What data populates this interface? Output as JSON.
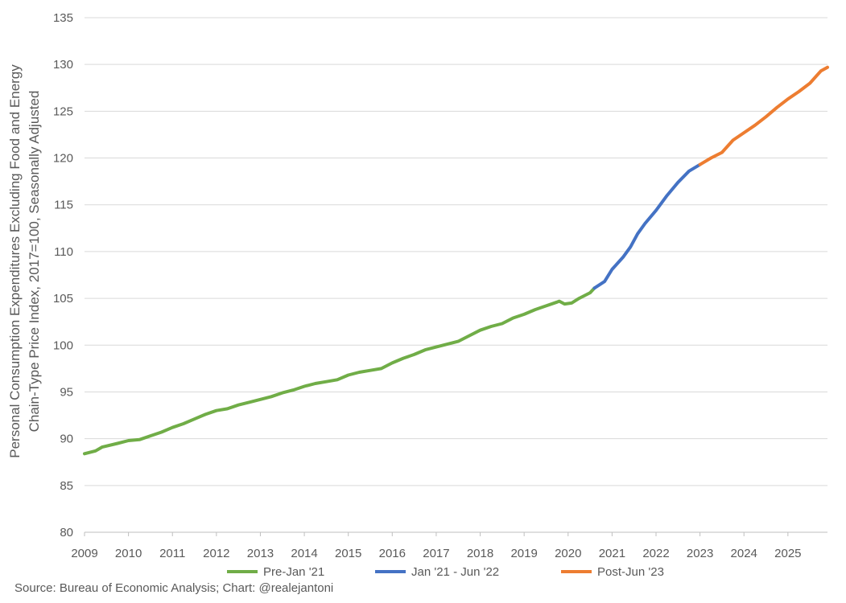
{
  "source_note": "Source: Bureau of Economic Analysis; Chart: @realejantoni",
  "chart_data": {
    "type": "line",
    "title": "",
    "xlabel": "",
    "ylabel_line1": "Personal Consumption Expenditures Excluding Food and Energy",
    "ylabel_line2": "Chain-Type Price Index, 2017=100, Seasonally Adjusted",
    "xlim": [
      2009.0,
      2025.9
    ],
    "ylim": [
      80,
      135
    ],
    "y_ticks": [
      80,
      85,
      90,
      95,
      100,
      105,
      110,
      115,
      120,
      125,
      130,
      135
    ],
    "x_ticks": [
      "2009",
      "2010",
      "2011",
      "2012",
      "2013",
      "2014",
      "2015",
      "2016",
      "2017",
      "2018",
      "2019",
      "2020",
      "2021",
      "2022",
      "2023",
      "2024",
      "2025"
    ],
    "grid": "horizontal",
    "legend_position": "bottom",
    "series": [
      {
        "name": "Pre-Jan '21",
        "color": "#70ad47",
        "points": [
          [
            2009.0,
            88.4
          ],
          [
            2009.25,
            88.7
          ],
          [
            2009.4,
            89.1
          ],
          [
            2009.75,
            89.5
          ],
          [
            2010.0,
            89.8
          ],
          [
            2010.25,
            89.9
          ],
          [
            2010.5,
            90.3
          ],
          [
            2010.75,
            90.7
          ],
          [
            2011.0,
            91.2
          ],
          [
            2011.25,
            91.6
          ],
          [
            2011.5,
            92.1
          ],
          [
            2011.75,
            92.6
          ],
          [
            2012.0,
            93.0
          ],
          [
            2012.25,
            93.2
          ],
          [
            2012.5,
            93.6
          ],
          [
            2012.75,
            93.9
          ],
          [
            2013.0,
            94.2
          ],
          [
            2013.25,
            94.5
          ],
          [
            2013.5,
            94.9
          ],
          [
            2013.75,
            95.2
          ],
          [
            2014.0,
            95.6
          ],
          [
            2014.25,
            95.9
          ],
          [
            2014.5,
            96.1
          ],
          [
            2014.75,
            96.3
          ],
          [
            2015.0,
            96.8
          ],
          [
            2015.25,
            97.1
          ],
          [
            2015.5,
            97.3
          ],
          [
            2015.75,
            97.5
          ],
          [
            2016.0,
            98.1
          ],
          [
            2016.25,
            98.6
          ],
          [
            2016.5,
            99.0
          ],
          [
            2016.75,
            99.5
          ],
          [
            2017.0,
            99.8
          ],
          [
            2017.25,
            100.1
          ],
          [
            2017.5,
            100.4
          ],
          [
            2017.75,
            101.0
          ],
          [
            2018.0,
            101.6
          ],
          [
            2018.25,
            102.0
          ],
          [
            2018.5,
            102.3
          ],
          [
            2018.75,
            102.9
          ],
          [
            2019.0,
            103.3
          ],
          [
            2019.25,
            103.8
          ],
          [
            2019.5,
            104.2
          ],
          [
            2019.75,
            104.6
          ],
          [
            2019.8,
            104.7
          ],
          [
            2019.92,
            104.4
          ],
          [
            2020.08,
            104.5
          ],
          [
            2020.25,
            105.0
          ],
          [
            2020.5,
            105.6
          ],
          [
            2020.6,
            106.1
          ]
        ]
      },
      {
        "name": "Jan '21 - Jun '22",
        "color": "#4472c4",
        "points": [
          [
            2020.6,
            106.1
          ],
          [
            2020.83,
            106.8
          ],
          [
            2021.0,
            108.1
          ],
          [
            2021.25,
            109.4
          ],
          [
            2021.42,
            110.5
          ],
          [
            2021.58,
            111.9
          ],
          [
            2021.75,
            113.0
          ],
          [
            2022.0,
            114.4
          ],
          [
            2022.25,
            116.0
          ],
          [
            2022.5,
            117.4
          ],
          [
            2022.75,
            118.6
          ],
          [
            2023.0,
            119.3
          ]
        ]
      },
      {
        "name": "Post-Jun '23",
        "color": "#ed7d31",
        "points": [
          [
            2023.0,
            119.3
          ],
          [
            2023.25,
            120.0
          ],
          [
            2023.5,
            120.6
          ],
          [
            2023.75,
            121.9
          ],
          [
            2024.0,
            122.7
          ],
          [
            2024.25,
            123.5
          ],
          [
            2024.5,
            124.4
          ],
          [
            2024.75,
            125.4
          ],
          [
            2025.0,
            126.3
          ],
          [
            2025.25,
            127.1
          ],
          [
            2025.5,
            128.0
          ],
          [
            2025.75,
            129.3
          ],
          [
            2025.9,
            129.7
          ]
        ]
      }
    ]
  }
}
